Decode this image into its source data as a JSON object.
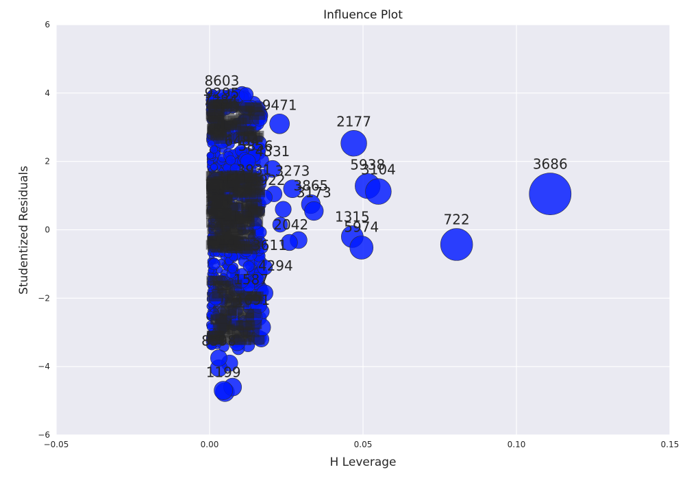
{
  "chart_data": {
    "type": "scatter",
    "title": "Influence Plot",
    "xlabel": "H Leverage",
    "ylabel": "Studentized Residuals",
    "xlim": [
      -0.05,
      0.15
    ],
    "ylim": [
      -6,
      6
    ],
    "xticks": [
      -0.05,
      0.0,
      0.05,
      0.1,
      0.15
    ],
    "xtick_labels": [
      "−0.05",
      "0.00",
      "0.05",
      "0.10",
      "0.15"
    ],
    "yticks": [
      -6,
      -4,
      -2,
      0,
      2,
      4,
      6
    ],
    "ytick_labels": [
      "−6",
      "−4",
      "−2",
      "0",
      "2",
      "4",
      "6"
    ],
    "grid": true,
    "bubble_color": "#0018ff",
    "background_color": "#eaeaf2",
    "points": [
      {
        "label": "3686",
        "x": 0.111,
        "y": 1.05
      },
      {
        "label": "722",
        "x": 0.0805,
        "y": -0.43
      },
      {
        "label": "2177",
        "x": 0.047,
        "y": 2.53
      },
      {
        "label": "5938",
        "x": 0.0515,
        "y": 1.28
      },
      {
        "label": "3104",
        "x": 0.055,
        "y": 1.12
      },
      {
        "label": "1315",
        "x": 0.0465,
        "y": -0.2
      },
      {
        "label": "5974",
        "x": 0.0495,
        "y": -0.52
      },
      {
        "label": "9471",
        "x": 0.0228,
        "y": 3.1
      },
      {
        "label": "4331",
        "x": 0.0205,
        "y": 1.78
      },
      {
        "label": "3273",
        "x": 0.027,
        "y": 1.2
      },
      {
        "label": "3865",
        "x": 0.033,
        "y": 0.75
      },
      {
        "label": "3173",
        "x": 0.034,
        "y": 0.55
      },
      {
        "label": "8603",
        "x": 0.004,
        "y": 3.85
      },
      {
        "label": "1199",
        "x": 0.0045,
        "y": -4.7
      },
      {
        "label": "8598",
        "x": 0.003,
        "y": -3.75
      }
    ],
    "other_points": [
      {
        "x": 0.005,
        "y": -4.75
      },
      {
        "x": 0.0075,
        "y": -4.6
      },
      {
        "x": 0.017,
        "y": -2.85
      },
      {
        "x": 0.0145,
        "y": -2.55
      },
      {
        "x": 0.018,
        "y": -1.85
      },
      {
        "x": 0.018,
        "y": -1.1
      },
      {
        "x": 0.016,
        "y": -2.2
      },
      {
        "x": 0.009,
        "y": -3.3
      },
      {
        "x": 0.0065,
        "y": -3.9
      },
      {
        "x": 0.003,
        "y": -4.05
      },
      {
        "x": 0.0125,
        "y": 2.0
      },
      {
        "x": 0.021,
        "y": 1.05
      },
      {
        "x": 0.024,
        "y": 0.6
      },
      {
        "x": 0.029,
        "y": -0.3
      },
      {
        "x": 0.026,
        "y": -0.37
      },
      {
        "x": 0.023,
        "y": 0.15
      },
      {
        "x": 0.018,
        "y": 0.95
      },
      {
        "x": 0.015,
        "y": 0.2
      },
      {
        "x": 0.012,
        "y": -0.6
      },
      {
        "x": 0.0105,
        "y": 1.5
      },
      {
        "x": 0.004,
        "y": 3.7
      },
      {
        "x": 0.004,
        "y": 2.6
      },
      {
        "x": 0.002,
        "y": 1.5
      },
      {
        "x": 0.001,
        "y": 0.6
      },
      {
        "x": 0.001,
        "y": -0.2
      },
      {
        "x": 0.0015,
        "y": -1.0
      },
      {
        "x": 0.002,
        "y": -2.0
      },
      {
        "x": 0.004,
        "y": -2.8
      },
      {
        "x": 0.008,
        "y": 0.4
      },
      {
        "x": 0.0105,
        "y": -1.5
      }
    ],
    "overlapping_labels": [
      {
        "text": "9295",
        "x": 0.004,
        "y": 4.0
      },
      {
        "text": "7284",
        "x": 0.0035,
        "y": 3.8
      },
      {
        "text": "6484",
        "x": 0.0105,
        "y": 2.6
      },
      {
        "text": "5856",
        "x": 0.015,
        "y": 2.45
      },
      {
        "text": "3931",
        "x": 0.0145,
        "y": 1.75
      },
      {
        "text": "3922",
        "x": 0.019,
        "y": 1.45
      },
      {
        "text": "4294",
        "x": 0.0215,
        "y": -1.05
      },
      {
        "text": "1587",
        "x": 0.0135,
        "y": -1.45
      },
      {
        "text": "1691",
        "x": 0.014,
        "y": -2.05
      },
      {
        "text": "2042",
        "x": 0.0265,
        "y": 0.15
      },
      {
        "text": "3611",
        "x": 0.0195,
        "y": -0.45
      }
    ]
  }
}
